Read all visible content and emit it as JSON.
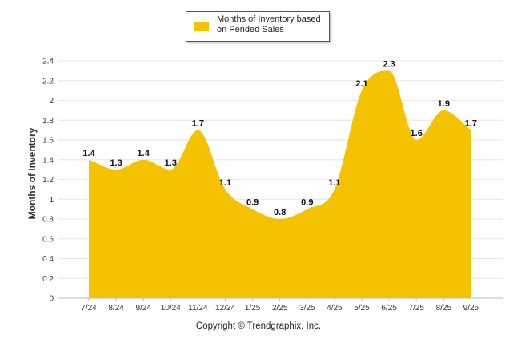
{
  "chart_data": {
    "type": "area",
    "series": [
      {
        "name": "Months of Inventory based on Pended Sales",
        "color": "#F5C200",
        "values": [
          1.4,
          1.3,
          1.4,
          1.3,
          1.7,
          1.1,
          0.9,
          0.8,
          0.9,
          1.1,
          2.1,
          2.3,
          1.6,
          1.9,
          1.7
        ]
      }
    ],
    "categories": [
      "7/24",
      "8/24",
      "9/24",
      "10/24",
      "11/24",
      "12/24",
      "1/25",
      "2/25",
      "3/25",
      "4/25",
      "5/25",
      "6/25",
      "7/25",
      "8/25",
      "9/25"
    ],
    "data_labels": [
      "1.4",
      "1.3",
      "1.4",
      "1.3",
      "1.7",
      "1.1",
      "0.9",
      "0.8",
      "0.9",
      "1.1",
      "2.1",
      "2.3",
      "1.6",
      "1.9",
      "1.7"
    ],
    "ylabel": "Months of Inventory",
    "xlabel": "",
    "ylim": [
      0,
      2.4
    ],
    "yticks": [
      "0",
      "0.2",
      "0.4",
      "0.6",
      "0.8",
      "1",
      "1.2",
      "1.4",
      "1.6",
      "1.8",
      "2",
      "2.2",
      "2.4"
    ],
    "grid": true,
    "legend": "top-center"
  },
  "legend": {
    "label": "Months of Inventory based on Pended Sales"
  },
  "footer": {
    "copyright": "Copyright © Trendgraphix, Inc."
  }
}
